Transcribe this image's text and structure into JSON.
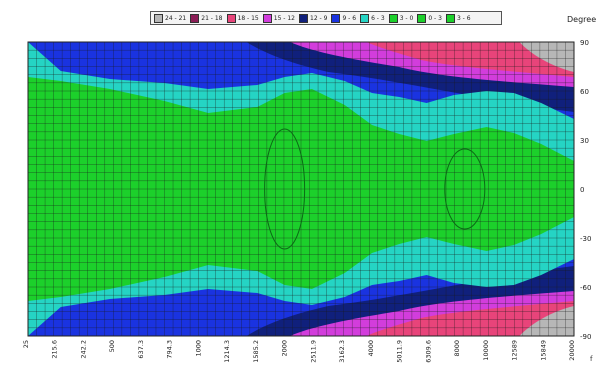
{
  "chart_data": {
    "type": "heatmap",
    "legend": [
      {
        "label": "24 - 21",
        "color": "#b7b7b7"
      },
      {
        "label": "21 - 18",
        "color": "#8b1d56"
      },
      {
        "label": "18 - 15",
        "color": "#e8447a"
      },
      {
        "label": "15 - 12",
        "color": "#d23ddc"
      },
      {
        "label": "12 - 9",
        "color": "#10207c"
      },
      {
        "label": "9 - 6",
        "color": "#1a33e0"
      },
      {
        "label": "6 - 3",
        "color": "#25d4c4"
      },
      {
        "label": "3 - 0",
        "color": "#1cd02b"
      },
      {
        "label": "0 - 3",
        "color": "#1cd02b"
      },
      {
        "label": "3 - 6",
        "color": "#1cd02b"
      }
    ],
    "unit_label": "Degree",
    "y_ticks": [
      "90",
      "60",
      "30",
      "0",
      "-30",
      "-60",
      "-90"
    ],
    "x_ticks": [
      "25",
      "215.6",
      "242.2",
      "500",
      "637.3",
      "794.3",
      "1000",
      "1214.3",
      "1585.2",
      "2000",
      "2511.9",
      "3162.3",
      "4000",
      "5011.9",
      "6309.6",
      "8000",
      "10000",
      "12589",
      "15849",
      "20000"
    ],
    "axis_x_end_label": "f"
  }
}
